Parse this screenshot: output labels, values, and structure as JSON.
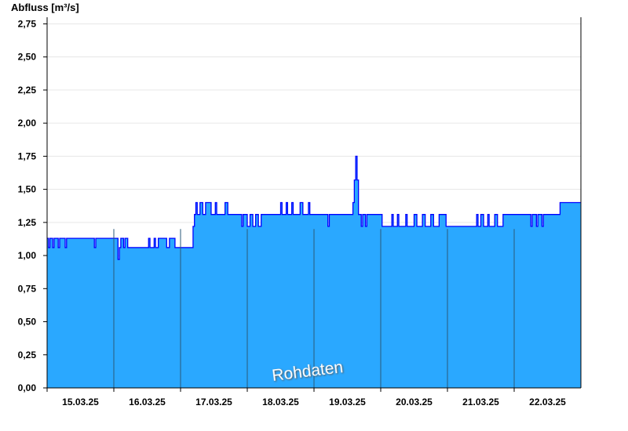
{
  "chart_data": {
    "type": "area",
    "title": "",
    "ylabel": "Abfluss [m³/s]",
    "xlabel": "",
    "ylim": [
      0,
      2.8
    ],
    "xlim": [
      "15.03.25 00:00",
      "23.03.25 00:00"
    ],
    "yticks": [
      0,
      0.25,
      0.5,
      0.75,
      1.0,
      1.25,
      1.5,
      1.75,
      2.0,
      2.25,
      2.5,
      2.75
    ],
    "ytick_labels": [
      "0,00",
      "0,25",
      "0,50",
      "0,75",
      "1,00",
      "1,25",
      "1,50",
      "1,75",
      "2,00",
      "2,25",
      "2,50",
      "2,75"
    ],
    "xtick_labels": [
      "15.03.25",
      "16.03.25",
      "17.03.25",
      "18.03.25",
      "19.03.25",
      "20.03.25",
      "21.03.25",
      "22.03.25"
    ],
    "grid": "horizontal",
    "watermark": "Rohdaten",
    "colors": {
      "fill": "#2aa8ff",
      "line": "#0000ff",
      "day_divider": "#2a5a7a",
      "grid": "#e6e6e6"
    },
    "step_series": [
      [
        "15.03 00:00",
        1.13
      ],
      [
        "15.03 00:30",
        1.06
      ],
      [
        "15.03 01:00",
        1.13
      ],
      [
        "15.03 02:00",
        1.06
      ],
      [
        "15.03 02:30",
        1.13
      ],
      [
        "15.03 04:00",
        1.06
      ],
      [
        "15.03 04:30",
        1.13
      ],
      [
        "15.03 06:30",
        1.06
      ],
      [
        "15.03 07:00",
        1.13
      ],
      [
        "15.03 17:00",
        1.06
      ],
      [
        "15.03 17:30",
        1.13
      ],
      [
        "16.03 01:30",
        0.97
      ],
      [
        "16.03 02:00",
        1.06
      ],
      [
        "16.03 02:30",
        1.13
      ],
      [
        "16.03 03:30",
        1.06
      ],
      [
        "16.03 04:00",
        1.13
      ],
      [
        "16.03 05:00",
        1.06
      ],
      [
        "16.03 12:30",
        1.13
      ],
      [
        "16.03 13:00",
        1.06
      ],
      [
        "16.03 14:30",
        1.13
      ],
      [
        "16.03 15:00",
        1.06
      ],
      [
        "16.03 16:00",
        1.13
      ],
      [
        "16.03 19:00",
        1.06
      ],
      [
        "16.03 20:00",
        1.13
      ],
      [
        "16.03 22:00",
        1.06
      ],
      [
        "17.03 04:30",
        1.22
      ],
      [
        "17.03 05:00",
        1.31
      ],
      [
        "17.03 05:30",
        1.4
      ],
      [
        "17.03 06:00",
        1.31
      ],
      [
        "17.03 07:00",
        1.4
      ],
      [
        "17.03 08:00",
        1.31
      ],
      [
        "17.03 09:00",
        1.4
      ],
      [
        "17.03 11:00",
        1.31
      ],
      [
        "17.03 12:30",
        1.4
      ],
      [
        "17.03 13:00",
        1.31
      ],
      [
        "17.03 16:00",
        1.4
      ],
      [
        "17.03 17:00",
        1.31
      ],
      [
        "17.03 22:00",
        1.22
      ],
      [
        "17.03 22:30",
        1.31
      ],
      [
        "18.03 00:00",
        1.22
      ],
      [
        "18.03 01:00",
        1.31
      ],
      [
        "18.03 02:00",
        1.22
      ],
      [
        "18.03 03:00",
        1.31
      ],
      [
        "18.03 04:00",
        1.22
      ],
      [
        "18.03 05:00",
        1.31
      ],
      [
        "18.03 12:00",
        1.4
      ],
      [
        "18.03 12:30",
        1.31
      ],
      [
        "18.03 14:00",
        1.4
      ],
      [
        "18.03 14:30",
        1.31
      ],
      [
        "18.03 16:00",
        1.4
      ],
      [
        "18.03 16:30",
        1.31
      ],
      [
        "18.03 19:00",
        1.4
      ],
      [
        "18.03 20:00",
        1.31
      ],
      [
        "18.03 22:00",
        1.4
      ],
      [
        "18.03 22:30",
        1.31
      ],
      [
        "19.03 05:00",
        1.22
      ],
      [
        "19.03 05:30",
        1.31
      ],
      [
        "19.03 14:00",
        1.4
      ],
      [
        "19.03 14:30",
        1.57
      ],
      [
        "19.03 15:00",
        1.75
      ],
      [
        "19.03 15:30",
        1.57
      ],
      [
        "19.03 16:00",
        1.31
      ],
      [
        "19.03 17:00",
        1.22
      ],
      [
        "19.03 17:30",
        1.31
      ],
      [
        "19.03 18:30",
        1.22
      ],
      [
        "19.03 19:00",
        1.31
      ],
      [
        "20.03 00:30",
        1.22
      ],
      [
        "20.03 04:00",
        1.31
      ],
      [
        "20.03 04:30",
        1.22
      ],
      [
        "20.03 06:00",
        1.31
      ],
      [
        "20.03 06:30",
        1.22
      ],
      [
        "20.03 09:00",
        1.31
      ],
      [
        "20.03 09:30",
        1.22
      ],
      [
        "20.03 12:00",
        1.31
      ],
      [
        "20.03 13:00",
        1.22
      ],
      [
        "20.03 15:00",
        1.31
      ],
      [
        "20.03 16:00",
        1.22
      ],
      [
        "20.03 18:00",
        1.31
      ],
      [
        "20.03 19:00",
        1.22
      ],
      [
        "20.03 21:00",
        1.31
      ],
      [
        "20.03 23:30",
        1.22
      ],
      [
        "21.03 10:30",
        1.31
      ],
      [
        "21.03 11:00",
        1.22
      ],
      [
        "21.03 12:00",
        1.31
      ],
      [
        "21.03 13:00",
        1.22
      ],
      [
        "21.03 14:30",
        1.31
      ],
      [
        "21.03 15:00",
        1.22
      ],
      [
        "21.03 17:00",
        1.31
      ],
      [
        "21.03 18:00",
        1.22
      ],
      [
        "21.03 20:00",
        1.31
      ],
      [
        "22.03 06:00",
        1.22
      ],
      [
        "22.03 06:30",
        1.31
      ],
      [
        "22.03 08:00",
        1.22
      ],
      [
        "22.03 08:30",
        1.31
      ],
      [
        "22.03 10:00",
        1.22
      ],
      [
        "22.03 10:30",
        1.31
      ],
      [
        "22.03 16:30",
        1.4
      ],
      [
        "23.03 00:00",
        1.4
      ]
    ]
  }
}
